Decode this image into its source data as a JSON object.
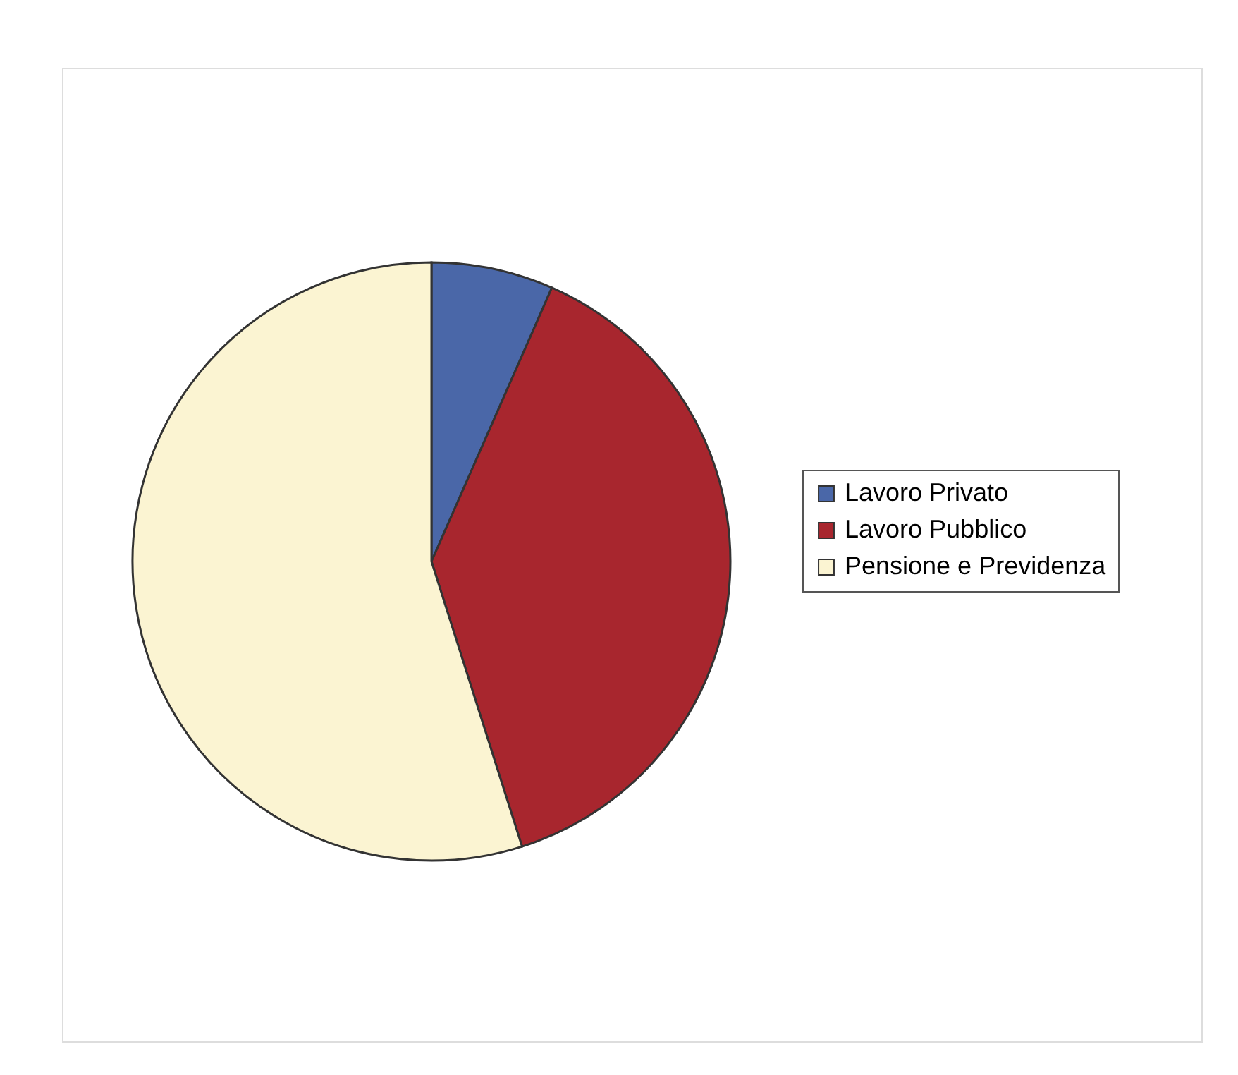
{
  "chart_data": {
    "type": "pie",
    "categories": [
      "Lavoro Privato",
      "Lavoro Pubblico",
      "Pensione e Previdenza"
    ],
    "values": [
      6.6,
      38.5,
      54.9
    ],
    "colors": [
      "#4a67a8",
      "#a8262e",
      "#fbf4d2"
    ],
    "legend": "right"
  }
}
